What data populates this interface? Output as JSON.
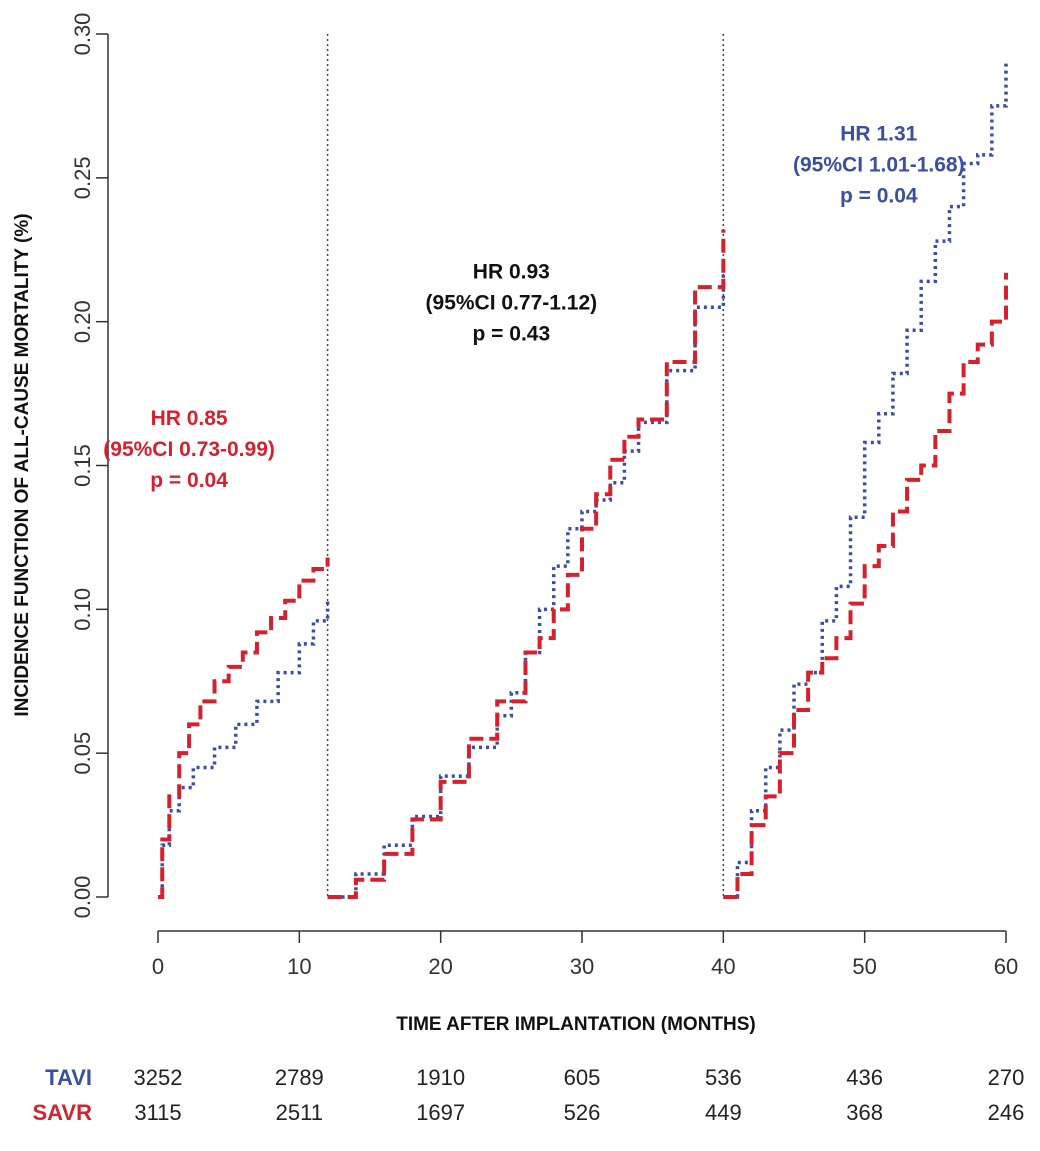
{
  "chart_data": {
    "type": "line",
    "title": "",
    "xlabel": "TIME AFTER IMPLANTATION (MONTHS)",
    "ylabel": "INCIDENCE FUNCTION OF ALL-CAUSE MORTALITY (%)",
    "xlim": [
      0,
      60
    ],
    "ylim": [
      0,
      0.3
    ],
    "x_ticks": [
      0,
      10,
      20,
      30,
      40,
      50,
      60
    ],
    "x_tick_labels": [
      "0",
      "10",
      "20",
      "30",
      "40",
      "50",
      "60"
    ],
    "y_ticks": [
      0,
      0.05,
      0.1,
      0.15,
      0.2,
      0.25,
      0.3
    ],
    "y_tick_labels": [
      "0.00",
      "0.05",
      "0.10",
      "0.15",
      "0.20",
      "0.25",
      "0.30"
    ],
    "grid": false,
    "landmarks": [
      12,
      40
    ],
    "series": [
      {
        "name": "TAVI",
        "color": "#3a4fa0",
        "line_style": "dotted",
        "segments": [
          {
            "x": [
              0,
              0.3,
              0.8,
              1.5,
              2.5,
              4,
              5.5,
              7,
              8.5,
              10,
              11,
              12
            ],
            "y": [
              0,
              0.018,
              0.03,
              0.038,
              0.045,
              0.052,
              0.06,
              0.068,
              0.078,
              0.088,
              0.096,
              0.104
            ]
          },
          {
            "x": [
              12,
              14,
              16,
              18,
              20,
              22,
              24,
              25,
              26,
              27,
              28,
              29,
              30,
              31,
              32,
              33,
              34,
              36,
              38,
              40
            ],
            "y": [
              0,
              0.008,
              0.018,
              0.028,
              0.042,
              0.052,
              0.063,
              0.071,
              0.085,
              0.1,
              0.115,
              0.128,
              0.134,
              0.138,
              0.144,
              0.155,
              0.165,
              0.183,
              0.205,
              0.222
            ]
          },
          {
            "x": [
              40,
              41,
              42,
              43,
              44,
              45,
              46,
              47,
              48,
              49,
              50,
              51,
              52,
              53,
              54,
              55,
              56,
              57,
              58,
              59,
              60
            ],
            "y": [
              0,
              0.012,
              0.03,
              0.045,
              0.058,
              0.074,
              0.078,
              0.096,
              0.108,
              0.132,
              0.158,
              0.168,
              0.182,
              0.197,
              0.214,
              0.228,
              0.24,
              0.255,
              0.258,
              0.275,
              0.29
            ]
          }
        ]
      },
      {
        "name": "SAVR",
        "color": "#d7202e",
        "line_style": "dashed",
        "segments": [
          {
            "x": [
              0,
              0.3,
              0.8,
              1.5,
              2.2,
              3,
              4,
              5,
              6,
              7,
              8,
              9,
              10,
              11,
              12
            ],
            "y": [
              0,
              0.02,
              0.035,
              0.05,
              0.06,
              0.068,
              0.075,
              0.08,
              0.085,
              0.092,
              0.097,
              0.103,
              0.11,
              0.114,
              0.118
            ]
          },
          {
            "x": [
              12,
              14,
              16,
              18,
              20,
              22,
              24,
              26,
              27,
              28,
              29,
              30,
              31,
              32,
              33,
              34,
              36,
              38,
              40
            ],
            "y": [
              0,
              0.006,
              0.015,
              0.027,
              0.04,
              0.055,
              0.068,
              0.085,
              0.09,
              0.1,
              0.112,
              0.128,
              0.14,
              0.152,
              0.16,
              0.166,
              0.186,
              0.212,
              0.232
            ]
          },
          {
            "x": [
              40,
              41,
              42,
              43,
              44,
              45,
              46,
              47,
              48,
              49,
              50,
              51,
              52,
              53,
              54,
              55,
              56,
              57,
              58,
              59,
              60
            ],
            "y": [
              0,
              0.008,
              0.025,
              0.035,
              0.05,
              0.065,
              0.078,
              0.083,
              0.09,
              0.102,
              0.115,
              0.122,
              0.134,
              0.145,
              0.15,
              0.162,
              0.175,
              0.186,
              0.192,
              0.2,
              0.217
            ]
          }
        ]
      }
    ],
    "annotations": [
      {
        "lines": [
          "HR 0.85",
          "(95%CI 0.73-0.99)",
          "p = 0.04"
        ],
        "color": "#d7202e",
        "anchor_x": 2.2,
        "anchor_y": 0.164
      },
      {
        "lines": [
          "HR 0.93",
          "(95%CI 0.77-1.12)",
          "p = 0.43"
        ],
        "color": "#111111",
        "anchor_x": 25,
        "anchor_y": 0.215
      },
      {
        "lines": [
          "HR 1.31",
          "(95%CI 1.01-1.68)",
          "p = 0.04"
        ],
        "color": "#3a4fa0",
        "anchor_x": 51,
        "anchor_y": 0.263
      }
    ],
    "risk_table": {
      "rows": [
        {
          "label": "TAVI",
          "color": "#3a4fa0",
          "values": [
            "3252",
            "2789",
            "1910",
            "605",
            "536",
            "436",
            "270"
          ]
        },
        {
          "label": "SAVR",
          "color": "#d7202e",
          "values": [
            "3115",
            "2511",
            "1697",
            "526",
            "449",
            "368",
            "246"
          ]
        }
      ]
    }
  }
}
